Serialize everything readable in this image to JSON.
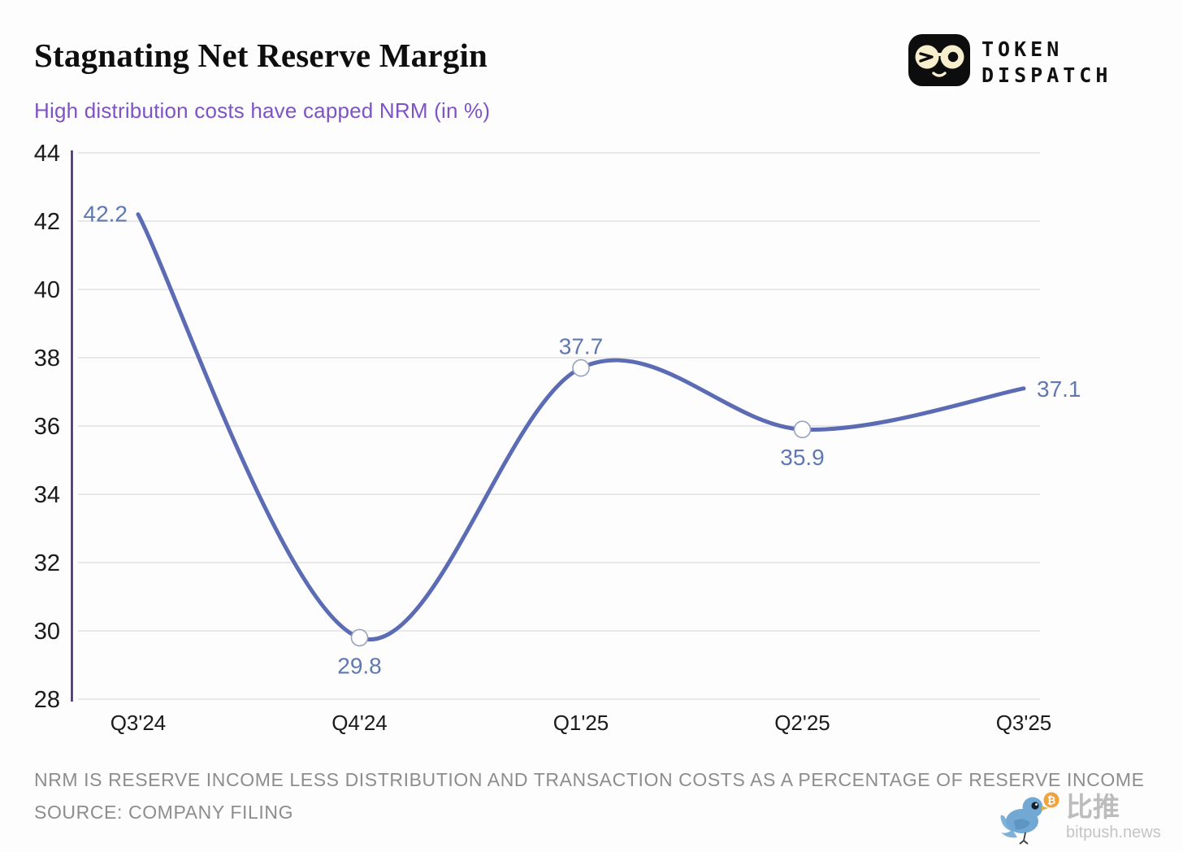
{
  "header": {
    "title": "Stagnating Net Reserve Margin",
    "subtitle": "High distribution costs have capped NRM (in %)"
  },
  "brand": {
    "line1": "TOKEN",
    "line2": "DISPATCH"
  },
  "chart_data": {
    "type": "line",
    "categories": [
      "Q3'24",
      "Q4'24",
      "Q1'25",
      "Q2'25",
      "Q3'25"
    ],
    "values": [
      42.2,
      29.8,
      37.7,
      35.9,
      37.1
    ],
    "data_labels": [
      "42.2",
      "29.8",
      "37.7",
      "35.9",
      "37.1"
    ],
    "label_placements": [
      "left",
      "below",
      "above",
      "below",
      "right"
    ],
    "markers": [
      false,
      true,
      true,
      true,
      false
    ],
    "title": "Stagnating Net Reserve Margin",
    "subtitle": "High distribution costs have capped NRM (in %)",
    "xlabel": "",
    "ylabel": "NRM (in %)",
    "ylim": [
      28,
      44
    ],
    "ytick_step": 2,
    "grid": "horizontal",
    "legend": "none",
    "smooth": true,
    "line_color": "#5c6cb4",
    "data_label_color": "#5f78b2",
    "marker_stroke_color": "#98a2bb",
    "axis_color": "#3d2069",
    "grid_color": "#e8e8ea"
  },
  "footer": {
    "note": "NRM IS RESERVE INCOME LESS DISTRIBUTION AND TRANSACTION COSTS AS A PERCENTAGE OF RESERVE INCOME",
    "source": "SOURCE: COMPANY FILING"
  },
  "watermark": {
    "cn_name": "比推",
    "domain": "bitpush.news"
  }
}
